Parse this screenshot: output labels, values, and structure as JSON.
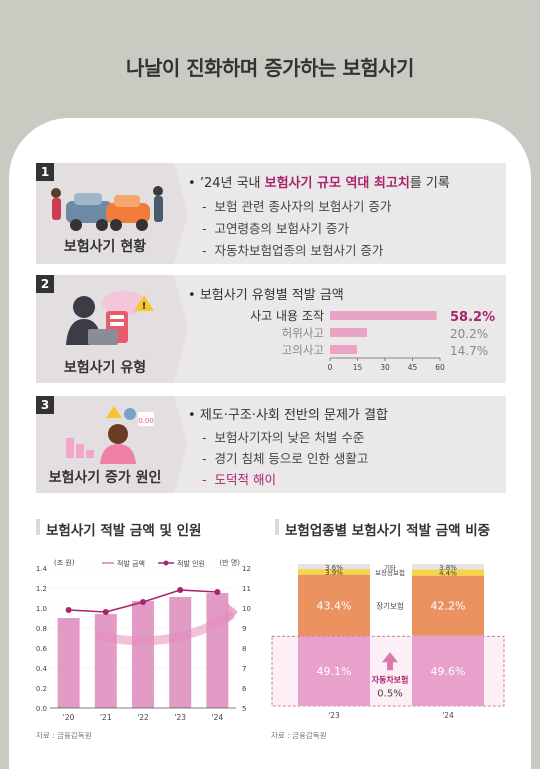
{
  "title": "나날이 진화하며 증가하는 보험사기",
  "sections": [
    {
      "num": "1",
      "label": "보험사기 현황",
      "headline_pre": "’24년 국내 ",
      "headline_em": "보험사기 규모 역대 최고치",
      "headline_post": "를 기록",
      "items": [
        "보험 관련 종사자의 보험사기 증가",
        "고연령층의 보험사기 증가",
        "자동차보험업종의 보험사기 증가"
      ]
    },
    {
      "num": "2",
      "label": "보험사기 유형",
      "headline": "보험사기 유형별 적발 금액"
    },
    {
      "num": "3",
      "label": "보험사기 증가 원인",
      "headline": "제도·구조·사회 전반의 문제가 결합",
      "item1_pre": "보험사기자의 ",
      "item1_em": "낮은 처벌 수준",
      "item2_pre": "경기 침체 등으로 인한 ",
      "item2_em": "생활고",
      "item3": "도덕적 해이"
    }
  ],
  "type_chart": {
    "chart_data": {
      "type": "bar",
      "orientation": "horizontal",
      "categories": [
        "사고 내용 조작",
        "허위사고",
        "고의사고"
      ],
      "values": [
        58.2,
        20.2,
        14.7
      ],
      "value_labels": [
        "58.2%",
        "20.2%",
        "14.7%"
      ],
      "xticks": [
        "0",
        "15",
        "30",
        "45",
        "60"
      ],
      "xlim": [
        0,
        60
      ],
      "colors": [
        "#e9a3c6",
        "#e9a3c6",
        "#e9a3c6"
      ]
    }
  },
  "combo_chart": {
    "title": "보험사기 적발 금액 및 인원",
    "source": "자료 : 금융감독원",
    "chart_data": {
      "type": "bar",
      "categories": [
        "'20",
        "'21",
        "'22",
        "'23",
        "'24"
      ],
      "series": [
        {
          "name": "적발 금액",
          "values": [
            0.9,
            0.94,
            1.07,
            1.11,
            1.15
          ],
          "color": "#e29bc4"
        },
        {
          "name": "적발 인원",
          "values": [
            9.9,
            9.8,
            10.3,
            10.9,
            10.8
          ],
          "color": "#a8246a",
          "type": "line",
          "axis": "right"
        }
      ],
      "left_unit": "(조 원)",
      "right_unit": "(만 명)",
      "ylim_left": [
        0,
        1.4
      ],
      "yticks_left": [
        "0.0",
        "0.2",
        "0.4",
        "0.6",
        "0.8",
        "1.0",
        "1.2",
        "1.4"
      ],
      "ylim_right": [
        5,
        12
      ],
      "yticks_right": [
        "5",
        "6",
        "7",
        "8",
        "9",
        "10",
        "11",
        "12"
      ]
    }
  },
  "stack_chart": {
    "title": "보험업종별 보험사기 적발 금액 비중",
    "source": "자료 : 금융감독원",
    "chart_data": {
      "type": "bar",
      "stacked": true,
      "categories": [
        "'23",
        "'24"
      ],
      "series": [
        {
          "name": "자동차보험",
          "values": [
            49.1,
            49.6
          ],
          "labels": [
            "49.1%",
            "49.6%"
          ],
          "color": "#e7a1ca"
        },
        {
          "name": "장기보험",
          "values": [
            43.4,
            42.2
          ],
          "labels": [
            "43.4%",
            "42.2%"
          ],
          "color": "#eb9360"
        },
        {
          "name": "보장성보험",
          "values": [
            3.9,
            4.4
          ],
          "labels": [
            "3.9%",
            "4.4%"
          ],
          "color": "#f7d44a"
        },
        {
          "name": "기타",
          "values": [
            3.6,
            3.8
          ],
          "labels": [
            "3.6%",
            "3.8%"
          ],
          "color": "#e4e4e4"
        }
      ],
      "center_labels": {
        "other": "기타",
        "protection": "보장성보험",
        "long_term": "장기보험",
        "auto": "자동차보험",
        "auto_change": "0.5%"
      }
    }
  }
}
